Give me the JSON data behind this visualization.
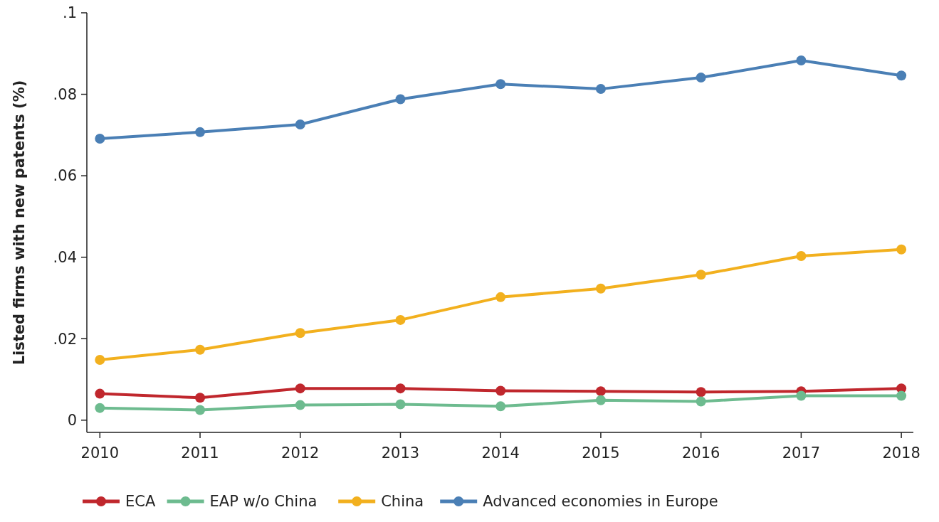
{
  "chart_data": {
    "type": "line",
    "ylabel": "Listed firms with new patents (%)",
    "x": [
      2010,
      2011,
      2012,
      2013,
      2014,
      2015,
      2016,
      2017,
      2018
    ],
    "xlim": [
      2009.87,
      2018.12
    ],
    "xticks": [
      2010,
      2011,
      2012,
      2013,
      2014,
      2015,
      2016,
      2017,
      2018
    ],
    "ylim": [
      -0.003,
      0.1
    ],
    "yticks": [
      0,
      {
        "value": 0.02,
        "label": ".02"
      },
      {
        "value": 0.04,
        "label": ".04"
      },
      {
        "value": 0.06,
        "label": ".06"
      },
      {
        "value": 0.08,
        "label": ".08"
      },
      {
        "value": 0.1,
        "label": ".1"
      }
    ],
    "grid": false,
    "legend": "bottom",
    "marker": "circle",
    "line_style": "solid",
    "series": [
      {
        "name": "ECA",
        "color": "#c0272d",
        "values": [
          0.0065,
          0.0055,
          0.0078,
          0.0078,
          0.0072,
          0.0071,
          0.0069,
          0.0071,
          0.0078
        ]
      },
      {
        "name": "EAP w/o China",
        "color": "#6dbb8f",
        "values": [
          0.003,
          0.0025,
          0.0037,
          0.0039,
          0.0034,
          0.0049,
          0.0046,
          0.006,
          0.006
        ]
      },
      {
        "name": "China",
        "color": "#f2b01e",
        "values": [
          0.0148,
          0.0173,
          0.0214,
          0.0246,
          0.0302,
          0.0323,
          0.0357,
          0.0403,
          0.0419
        ]
      },
      {
        "name": "Advanced economies in Europe",
        "color": "#4a7fb5",
        "values": [
          0.0691,
          0.0707,
          0.0726,
          0.0788,
          0.0825,
          0.0813,
          0.0841,
          0.0883,
          0.0846
        ]
      }
    ]
  }
}
